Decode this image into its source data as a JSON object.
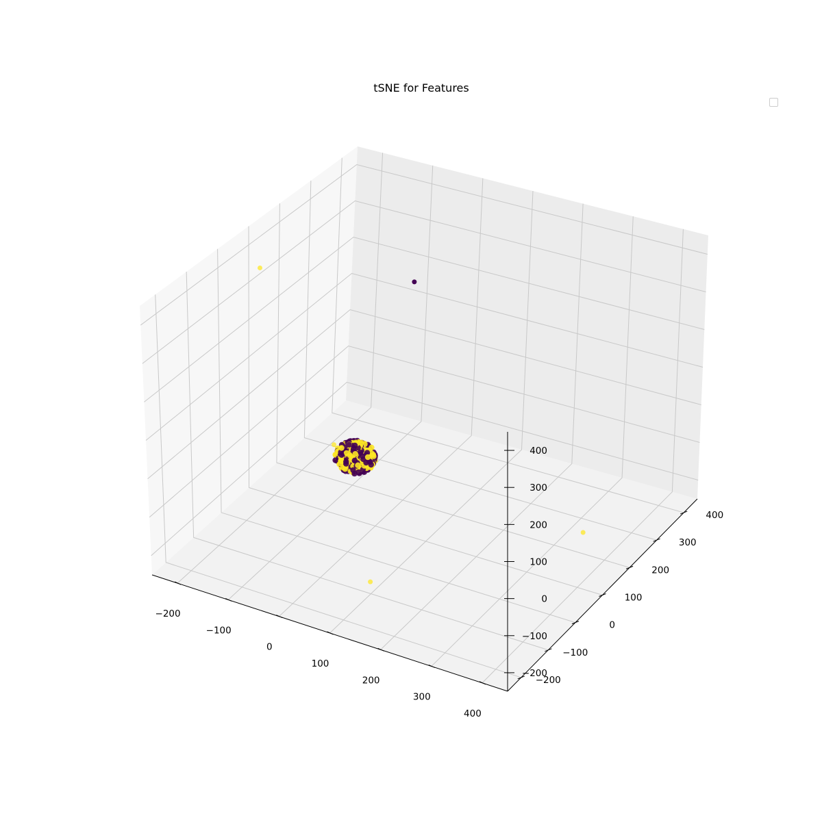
{
  "chart_data": {
    "type": "scatter",
    "projection": "3d",
    "title": "tSNE for Features",
    "xlabel": "",
    "ylabel": "",
    "zlabel": "",
    "legend": {
      "position": "top-right",
      "entries": []
    },
    "grid": true,
    "xlim": [
      -250,
      450
    ],
    "ylim": [
      -250,
      450
    ],
    "zlim": [
      -250,
      450
    ],
    "x_ticks": [
      "−200",
      "−100",
      "0",
      "100",
      "200",
      "300",
      "400"
    ],
    "y_ticks": [
      "−200",
      "−100",
      "0",
      "100",
      "200",
      "300",
      "400"
    ],
    "z_ticks": [
      "−200",
      "−100",
      "0",
      "100",
      "200",
      "300",
      "400"
    ],
    "colormap": [
      "#440154",
      "#fde725"
    ],
    "cluster": {
      "center": [
        10,
        10,
        0
      ],
      "radius": 35,
      "classes": [
        "#440154",
        "#fde725"
      ]
    },
    "outliers": [
      {
        "x": -240,
        "y": 120,
        "z": 330,
        "color": "#fde725"
      },
      {
        "x": -70,
        "y": 350,
        "z": 210,
        "color": "#440154"
      },
      {
        "x": -60,
        "y": 60,
        "z": -30,
        "color": "#fde725"
      },
      {
        "x": 110,
        "y": -120,
        "z": -200,
        "color": "#fde725"
      },
      {
        "x": 420,
        "y": 80,
        "z": -80,
        "color": "#fde725"
      }
    ]
  }
}
